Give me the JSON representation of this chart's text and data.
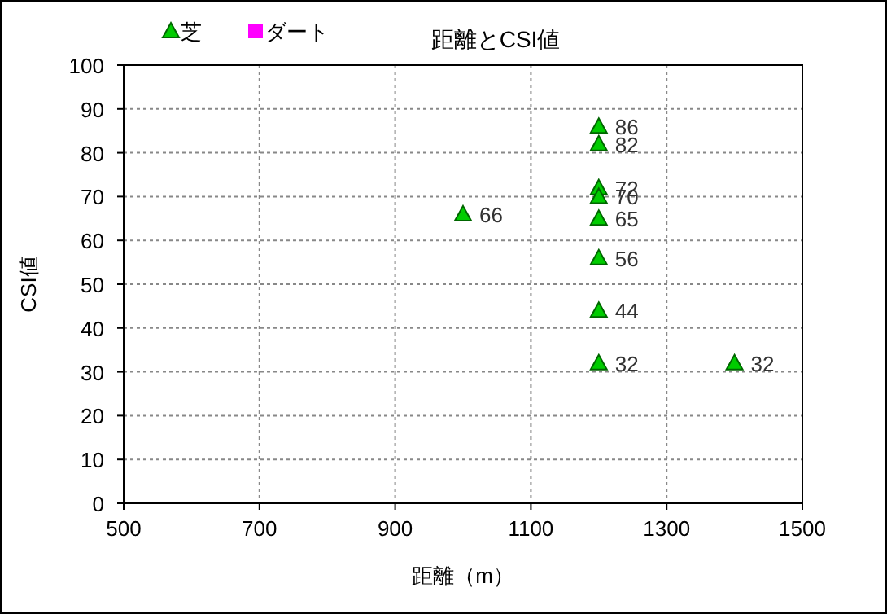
{
  "chart_data": {
    "type": "scatter",
    "title": "距離とCSI値",
    "xlabel": "距離（m）",
    "ylabel": "CSI値",
    "xlim": [
      500,
      1500
    ],
    "xticks": [
      500,
      700,
      900,
      1100,
      1300,
      1500
    ],
    "ylim": [
      0,
      100
    ],
    "yticks": [
      0,
      10,
      20,
      30,
      40,
      50,
      60,
      70,
      80,
      90,
      100
    ],
    "grid": true,
    "legend": "top left",
    "data_labels": true,
    "series": [
      {
        "name": "芝",
        "color": "#00cc00",
        "marker": "triangle",
        "x": [
          1000,
          1200,
          1200,
          1200,
          1200,
          1200,
          1200,
          1200,
          1200,
          1400
        ],
        "values": [
          66,
          86,
          82,
          72,
          70,
          65,
          56,
          44,
          32,
          32
        ]
      },
      {
        "name": "ダート",
        "color": "#ff00ff",
        "marker": "square"
      }
    ]
  }
}
